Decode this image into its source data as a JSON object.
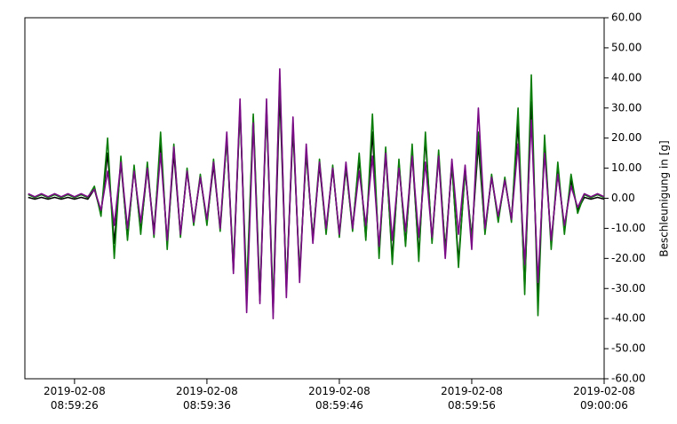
{
  "chart_data": {
    "type": "line",
    "y_label": "Beschleunigung in [g]",
    "xlim": [
      "2019-02-08 08:59:22.25",
      "2019-02-08 09:00:06"
    ],
    "xticks": [
      {
        "value": "2019-02-08 08:59:26",
        "label": "2019-02-08\n08:59:26"
      },
      {
        "value": "2019-02-08 08:59:36",
        "label": "2019-02-08\n08:59:36"
      },
      {
        "value": "2019-02-08 08:59:46",
        "label": "2019-02-08\n08:59:46"
      },
      {
        "value": "2019-02-08 08:59:56",
        "label": "2019-02-08\n08:59:56"
      },
      {
        "value": "2019-02-08 09:00:06",
        "label": "2019-02-08\n09:00:06"
      }
    ],
    "ylim": [
      -60,
      60
    ],
    "yticks": [
      {
        "value": 60,
        "label": "60.00"
      },
      {
        "value": 50,
        "label": "50.00"
      },
      {
        "value": 40,
        "label": "40.00"
      },
      {
        "value": 30,
        "label": "30.00"
      },
      {
        "value": 20,
        "label": "20.00"
      },
      {
        "value": 10,
        "label": "10.00"
      },
      {
        "value": 0,
        "label": "0.00"
      },
      {
        "value": -10,
        "label": "-10.00"
      },
      {
        "value": -20,
        "label": "-20.00"
      },
      {
        "value": -30,
        "label": "-30.00"
      },
      {
        "value": -40,
        "label": "-40.00"
      },
      {
        "value": -50,
        "label": "-50.00"
      },
      {
        "value": -60,
        "label": "-60.00"
      }
    ],
    "x": [
      "2019-02-08 08:59:22.5",
      "2019-02-08 08:59:23",
      "2019-02-08 08:59:23.5",
      "2019-02-08 08:59:24",
      "2019-02-08 08:59:24.5",
      "2019-02-08 08:59:25",
      "2019-02-08 08:59:25.5",
      "2019-02-08 08:59:26",
      "2019-02-08 08:59:26.5",
      "2019-02-08 08:59:27",
      "2019-02-08 08:59:27.5",
      "2019-02-08 08:59:28",
      "2019-02-08 08:59:28.5",
      "2019-02-08 08:59:29",
      "2019-02-08 08:59:29.5",
      "2019-02-08 08:59:30",
      "2019-02-08 08:59:30.5",
      "2019-02-08 08:59:31",
      "2019-02-08 08:59:31.5",
      "2019-02-08 08:59:32",
      "2019-02-08 08:59:32.5",
      "2019-02-08 08:59:33",
      "2019-02-08 08:59:33.5",
      "2019-02-08 08:59:34",
      "2019-02-08 08:59:34.5",
      "2019-02-08 08:59:35",
      "2019-02-08 08:59:35.5",
      "2019-02-08 08:59:36",
      "2019-02-08 08:59:36.5",
      "2019-02-08 08:59:37",
      "2019-02-08 08:59:37.5",
      "2019-02-08 08:59:38",
      "2019-02-08 08:59:38.5",
      "2019-02-08 08:59:39",
      "2019-02-08 08:59:39.5",
      "2019-02-08 08:59:40",
      "2019-02-08 08:59:40.5",
      "2019-02-08 08:59:41",
      "2019-02-08 08:59:41.5",
      "2019-02-08 08:59:42",
      "2019-02-08 08:59:42.5",
      "2019-02-08 08:59:43",
      "2019-02-08 08:59:43.5",
      "2019-02-08 08:59:44",
      "2019-02-08 08:59:44.5",
      "2019-02-08 08:59:45",
      "2019-02-08 08:59:45.5",
      "2019-02-08 08:59:46",
      "2019-02-08 08:59:46.5",
      "2019-02-08 08:59:47",
      "2019-02-08 08:59:47.5",
      "2019-02-08 08:59:48",
      "2019-02-08 08:59:48.5",
      "2019-02-08 08:59:49",
      "2019-02-08 08:59:49.5",
      "2019-02-08 08:59:50",
      "2019-02-08 08:59:50.5",
      "2019-02-08 08:59:51",
      "2019-02-08 08:59:51.5",
      "2019-02-08 08:59:52",
      "2019-02-08 08:59:52.5",
      "2019-02-08 08:59:53",
      "2019-02-08 08:59:53.5",
      "2019-02-08 08:59:54",
      "2019-02-08 08:59:54.5",
      "2019-02-08 08:59:55",
      "2019-02-08 08:59:55.5",
      "2019-02-08 08:59:56",
      "2019-02-08 08:59:56.5",
      "2019-02-08 08:59:57",
      "2019-02-08 08:59:57.5",
      "2019-02-08 08:59:58",
      "2019-02-08 08:59:58.5",
      "2019-02-08 08:59:59",
      "2019-02-08 08:59:59.5",
      "2019-02-08 09:00:00",
      "2019-02-08 09:00:00.5",
      "2019-02-08 09:00:01",
      "2019-02-08 09:00:01.5",
      "2019-02-08 09:00:02",
      "2019-02-08 09:00:02.5",
      "2019-02-08 09:00:03",
      "2019-02-08 09:00:03.5",
      "2019-02-08 09:00:04",
      "2019-02-08 09:00:04.5",
      "2019-02-08 09:00:05",
      "2019-02-08 09:00:05.5",
      "2019-02-08 09:00:06"
    ],
    "series": [
      {
        "color": "#000000",
        "values": [
          0.3,
          -0.3,
          0.3,
          -0.3,
          0.3,
          -0.3,
          0.3,
          -0.3,
          0.3,
          -0.3,
          3,
          -5,
          15,
          -15,
          12,
          -13,
          10,
          -11,
          10,
          -11,
          18,
          -15,
          15,
          -12,
          9,
          -8,
          7,
          -8,
          11,
          -10,
          20,
          -24,
          30,
          -33,
          27,
          -34,
          30,
          -38,
          35,
          -30,
          23,
          -25,
          15,
          -13,
          11,
          -11,
          10,
          -12,
          10,
          -10,
          13,
          -13,
          22,
          -18,
          15,
          -20,
          12,
          -15,
          15,
          -19,
          20,
          -14,
          14,
          -17,
          11,
          -21,
          9,
          -13,
          18,
          -11,
          7,
          -7,
          6,
          -7,
          25,
          -30,
          32,
          -32,
          18,
          -15,
          9,
          -10,
          6,
          -4,
          0.3,
          -0.3,
          0.3,
          -0.3
        ]
      },
      {
        "color": "#0a7d0a",
        "values": [
          1.2,
          0.2,
          1.2,
          0.2,
          1.2,
          0.2,
          1.2,
          0.2,
          1.2,
          0.2,
          4,
          -6,
          20,
          -20,
          14,
          -14,
          11,
          -12,
          12,
          -13,
          22,
          -17,
          18,
          -13,
          10,
          -9,
          8,
          -9,
          13,
          -11,
          20,
          -22,
          30,
          -30,
          28,
          -32,
          30,
          -35,
          40,
          -30,
          25,
          -26,
          16,
          -14,
          13,
          -12,
          11,
          -13,
          11,
          -11,
          15,
          -14,
          28,
          -20,
          17,
          -22,
          13,
          -16,
          18,
          -21,
          22,
          -15,
          16,
          -18,
          12,
          -23,
          10,
          -14,
          22,
          -12,
          8,
          -8,
          7,
          -8,
          30,
          -32,
          41,
          -39,
          21,
          -17,
          12,
          -12,
          8,
          -5,
          1.2,
          0.2,
          1.2,
          0.2
        ]
      },
      {
        "color": "#7a0a85",
        "values": [
          1.5,
          0.5,
          1.5,
          0.5,
          1.5,
          0.5,
          1.5,
          0.5,
          1.5,
          0.5,
          3,
          -4,
          9,
          -9,
          12,
          -10,
          9,
          -8,
          10,
          -12,
          15,
          -14,
          17,
          -12,
          9,
          -8,
          7,
          -7,
          12,
          -10,
          22,
          -25,
          33,
          -38,
          25,
          -35,
          33,
          -40,
          43,
          -33,
          27,
          -28,
          18,
          -15,
          12,
          -10,
          10,
          -12,
          12,
          -10,
          9,
          -9,
          14,
          -16,
          15,
          -14,
          10,
          -11,
          14,
          -13,
          12,
          -13,
          14,
          -20,
          13,
          -12,
          11,
          -17,
          30,
          -10,
          7,
          -6,
          6,
          -7,
          18,
          -22,
          26,
          -28,
          15,
          -14,
          8,
          -9,
          4,
          -3,
          1.5,
          0.5,
          1.5,
          0.5
        ]
      }
    ]
  }
}
